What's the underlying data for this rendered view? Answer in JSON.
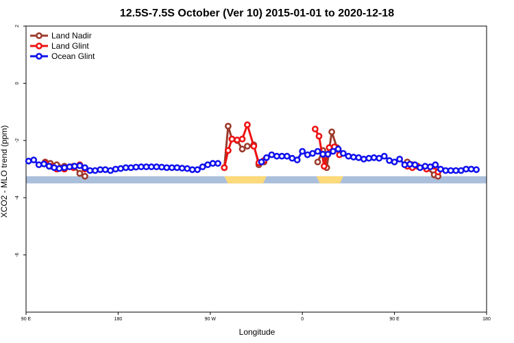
{
  "chart_data": {
    "type": "line",
    "title": "12.5S-7.5S October (Ver 10)   2015-01-01 to 2020-12-18",
    "xlabel": "Longitude",
    "ylabel": "XCO2 - MLO trend (ppm)",
    "xlim": [
      0,
      360
    ],
    "ylim": [
      -8,
      2
    ],
    "x_ticks": [
      {
        "value": 0,
        "label": "90 E"
      },
      {
        "value": 72,
        "label": "180"
      },
      {
        "value": 144,
        "label": "90 W"
      },
      {
        "value": 216,
        "label": "0"
      },
      {
        "value": 288,
        "label": "90 E"
      },
      {
        "value": 360,
        "label": "180"
      }
    ],
    "y_ticks": [
      -6,
      -4,
      -2,
      0,
      2
    ],
    "legend_position": "top-left",
    "background_band": {
      "y_range": [
        -3.5,
        -3.25
      ],
      "color": "#aabfdb",
      "land_color": "#fcd97a",
      "land_x_ranges": [
        [
          155,
          188
        ],
        [
          227,
          248
        ]
      ]
    },
    "series": [
      {
        "name": "Land Nadir",
        "color": "#9c3a2c",
        "segments": [
          [
            [
              15,
              -2.75
            ],
            [
              19,
              -2.8
            ],
            [
              24,
              -2.85
            ],
            [
              30,
              -2.9
            ],
            [
              37,
              -2.9
            ],
            [
              42,
              -3.15
            ],
            [
              46,
              -3.25
            ]
          ],
          [
            [
              155,
              -2.95
            ],
            [
              158,
              -1.5
            ],
            [
              161,
              -1.95
            ],
            [
              165,
              -2.0
            ],
            [
              169,
              -2.3
            ],
            [
              173,
              -2.2
            ],
            [
              178,
              -2.15
            ],
            [
              182,
              -2.85
            ],
            [
              186,
              -2.75
            ]
          ],
          [
            [
              228,
              -2.75
            ],
            [
              232,
              -2.35
            ],
            [
              235,
              -2.95
            ],
            [
              239,
              -1.7
            ],
            [
              243,
              -2.25
            ],
            [
              247,
              -2.45
            ]
          ],
          [
            [
              298,
              -2.75
            ],
            [
              302,
              -2.85
            ],
            [
              306,
              -2.9
            ],
            [
              313,
              -2.95
            ],
            [
              319,
              -3.2
            ],
            [
              322,
              -3.25
            ]
          ]
        ]
      },
      {
        "name": "Land Glint",
        "color": "#ee1111",
        "segments": [
          [
            [
              15,
              -2.8
            ],
            [
              19,
              -2.9
            ],
            [
              24,
              -3.0
            ],
            [
              30,
              -3.0
            ],
            [
              37,
              -2.95
            ],
            [
              42,
              -2.85
            ],
            [
              46,
              -3.0
            ]
          ],
          [
            [
              155,
              -2.95
            ],
            [
              158,
              -2.35
            ],
            [
              161,
              -1.95
            ],
            [
              165,
              -1.98
            ],
            [
              169,
              -1.95
            ],
            [
              173,
              -1.45
            ],
            [
              178,
              -2.2
            ],
            [
              182,
              -2.78
            ],
            [
              186,
              -2.7
            ]
          ],
          [
            [
              226,
              -1.6
            ],
            [
              229,
              -1.85
            ],
            [
              233,
              -2.9
            ],
            [
              237,
              -2.25
            ],
            [
              241,
              -2.22
            ],
            [
              245,
              -2.5
            ]
          ],
          [
            [
              298,
              -2.9
            ],
            [
              302,
              -2.95
            ],
            [
              306,
              -2.9
            ],
            [
              313,
              -3.0
            ],
            [
              319,
              -2.9
            ],
            [
              322,
              -3.1
            ]
          ]
        ]
      },
      {
        "name": "Ocean Glint",
        "color": "#1111ee",
        "segments": [
          [
            [
              2,
              -2.72
            ],
            [
              6,
              -2.68
            ],
            [
              10,
              -2.85
            ],
            [
              14,
              -2.82
            ],
            [
              18,
              -2.9
            ],
            [
              22,
              -2.95
            ],
            [
              26,
              -2.98
            ],
            [
              30,
              -2.95
            ],
            [
              34,
              -2.92
            ],
            [
              38,
              -2.9
            ],
            [
              42,
              -2.88
            ],
            [
              46,
              -2.95
            ],
            [
              50,
              -3.05
            ],
            [
              54,
              -3.05
            ],
            [
              58,
              -3.02
            ],
            [
              62,
              -3.02
            ],
            [
              66,
              -3.05
            ],
            [
              70,
              -3.0
            ],
            [
              74,
              -2.98
            ],
            [
              78,
              -2.95
            ],
            [
              82,
              -2.95
            ],
            [
              86,
              -2.93
            ],
            [
              90,
              -2.92
            ],
            [
              94,
              -2.92
            ],
            [
              98,
              -2.92
            ],
            [
              102,
              -2.92
            ],
            [
              106,
              -2.93
            ],
            [
              110,
              -2.95
            ],
            [
              114,
              -2.95
            ],
            [
              118,
              -2.95
            ],
            [
              122,
              -2.97
            ],
            [
              126,
              -2.98
            ],
            [
              130,
              -3.02
            ],
            [
              134,
              -3.02
            ],
            [
              138,
              -2.92
            ],
            [
              142,
              -2.85
            ],
            [
              146,
              -2.8
            ],
            [
              150,
              -2.8
            ]
          ],
          [
            [
              184,
              -2.75
            ],
            [
              188,
              -2.6
            ],
            [
              192,
              -2.5
            ],
            [
              196,
              -2.55
            ],
            [
              200,
              -2.55
            ],
            [
              204,
              -2.55
            ],
            [
              208,
              -2.62
            ],
            [
              212,
              -2.68
            ],
            [
              216,
              -2.38
            ],
            [
              220,
              -2.5
            ],
            [
              224,
              -2.45
            ],
            [
              228,
              -2.38
            ],
            [
              232,
              -2.48
            ],
            [
              236,
              -2.48
            ],
            [
              240,
              -2.38
            ],
            [
              244,
              -2.3
            ],
            [
              248,
              -2.45
            ],
            [
              252,
              -2.55
            ],
            [
              256,
              -2.58
            ],
            [
              260,
              -2.6
            ],
            [
              264,
              -2.65
            ],
            [
              268,
              -2.62
            ],
            [
              272,
              -2.6
            ],
            [
              276,
              -2.62
            ],
            [
              280,
              -2.55
            ],
            [
              284,
              -2.7
            ],
            [
              288,
              -2.75
            ],
            [
              292,
              -2.65
            ],
            [
              296,
              -2.85
            ],
            [
              300,
              -2.83
            ],
            [
              304,
              -2.85
            ],
            [
              308,
              -2.95
            ],
            [
              312,
              -2.9
            ],
            [
              316,
              -2.92
            ],
            [
              320,
              -2.85
            ],
            [
              324,
              -3.0
            ],
            [
              328,
              -3.05
            ],
            [
              332,
              -3.05
            ],
            [
              336,
              -3.05
            ],
            [
              340,
              -3.05
            ],
            [
              344,
              -3.0
            ],
            [
              348,
              -3.0
            ],
            [
              352,
              -3.02
            ]
          ]
        ]
      }
    ]
  }
}
